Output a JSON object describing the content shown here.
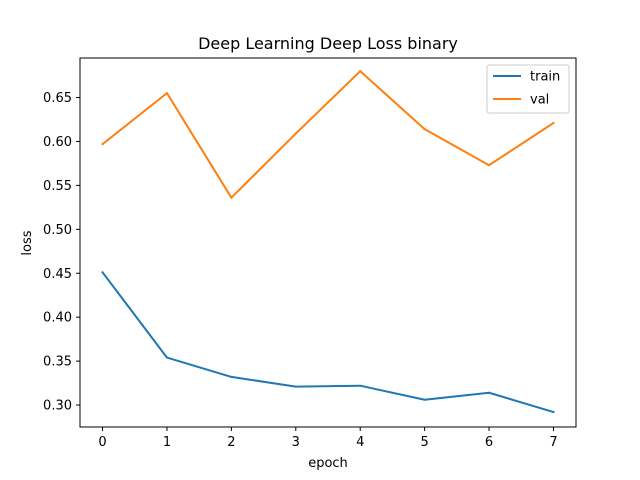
{
  "chart_data": {
    "type": "line",
    "title": "Deep Learning Deep Loss binary",
    "xlabel": "epoch",
    "ylabel": "loss",
    "x": [
      0,
      1,
      2,
      3,
      4,
      5,
      6,
      7
    ],
    "xlim": [
      -0.35,
      7.35
    ],
    "ylim": [
      0.275,
      0.695
    ],
    "yticks": [
      "0.30",
      "0.35",
      "0.40",
      "0.45",
      "0.50",
      "0.55",
      "0.60",
      "0.65"
    ],
    "grid": false,
    "legend_position": "top-right",
    "series": [
      {
        "name": "train",
        "color": "#1f77b4",
        "values": [
          0.451,
          0.354,
          0.332,
          0.321,
          0.322,
          0.306,
          0.314,
          0.292
        ]
      },
      {
        "name": "val",
        "color": "#ff7f0e",
        "values": [
          0.597,
          0.655,
          0.536,
          0.609,
          0.68,
          0.614,
          0.573,
          0.621
        ]
      }
    ]
  }
}
